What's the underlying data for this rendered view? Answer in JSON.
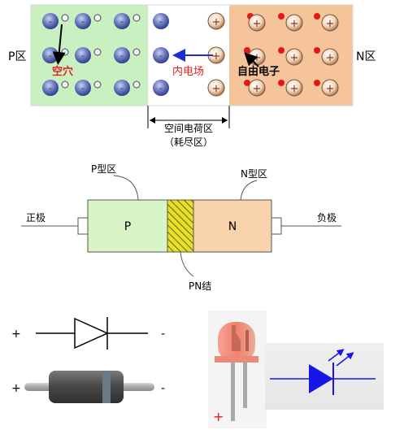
{
  "pn_junction": {
    "p_region_label": "P区",
    "n_region_label": "N区",
    "hole_label": "空穴",
    "field_label": "内电场",
    "electron_label": "自由电子",
    "depletion_label": "空间电荷区",
    "depletion_sub_label": "（耗尽区）",
    "minus_sign": "-",
    "plus_sign": "+",
    "colors": {
      "p_region": "#c8f0c0",
      "n_region": "#f5c49a",
      "ion": "#5b6ab0",
      "hole_label": "#e02020",
      "field_arrow": "#1a2fd0",
      "electron_dot": "#e01818"
    }
  },
  "diode_structure": {
    "p_type_label": "P型区",
    "n_type_label": "N型区",
    "p_block_label": "P",
    "n_block_label": "N",
    "anode_label": "正极",
    "cathode_label": "负极",
    "junction_label": "PN结",
    "colors": {
      "p_block": "#d9f5c8",
      "n_block": "#f7d2aa",
      "junction": "#e8e020"
    }
  },
  "symbols": {
    "diode_plus": "+",
    "diode_minus": "-",
    "component_plus": "+",
    "component_minus": "-",
    "led_plus": "+",
    "colors": {
      "led_symbol": "#1616e8",
      "led_body": "#f08878",
      "component_body": "#555555",
      "led_plus": "#e02020"
    }
  }
}
